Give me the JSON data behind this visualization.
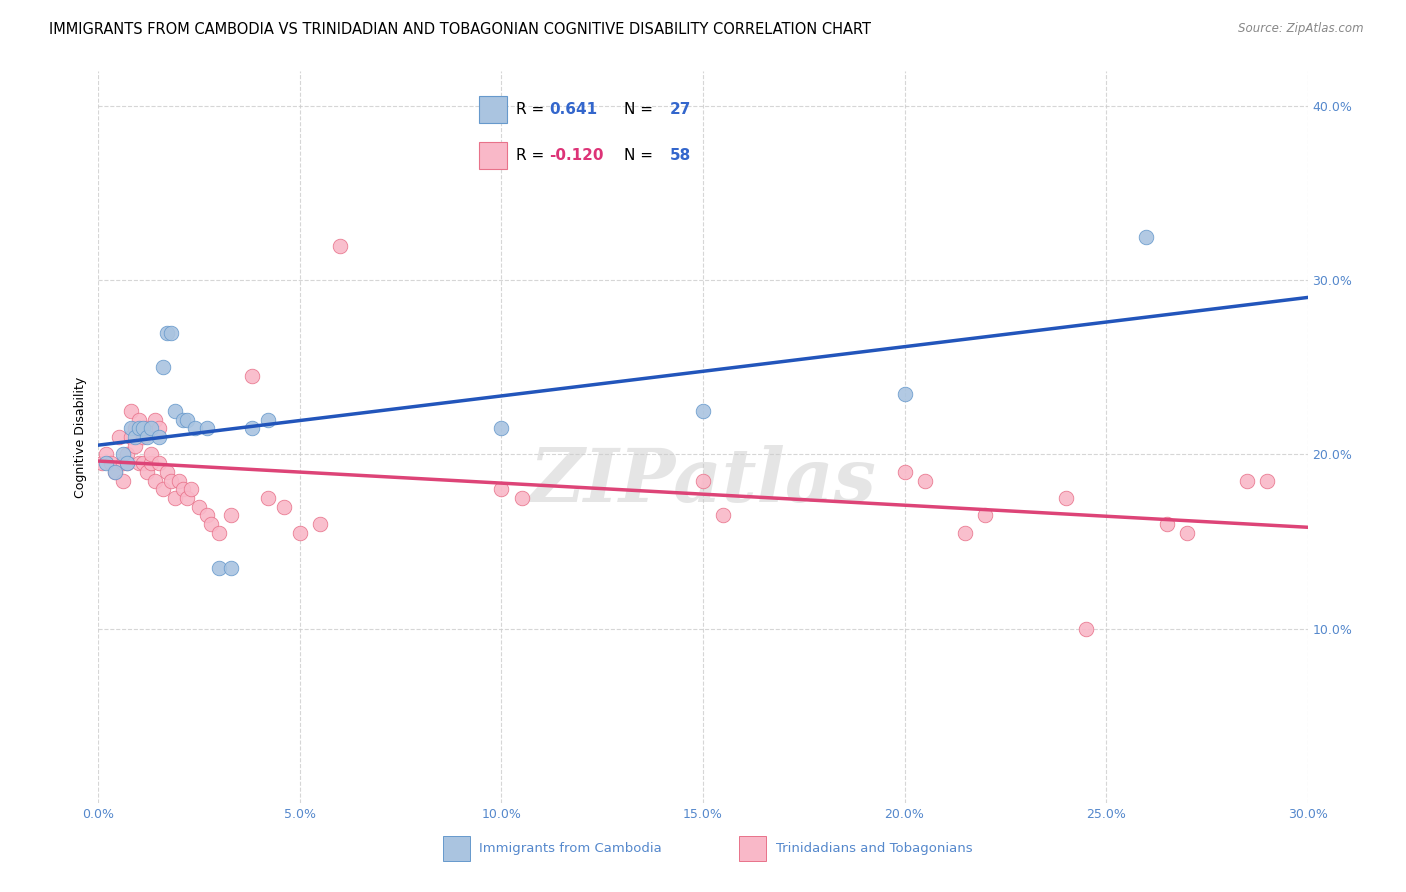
{
  "title": "IMMIGRANTS FROM CAMBODIA VS TRINIDADIAN AND TOBAGONIAN COGNITIVE DISABILITY CORRELATION CHART",
  "source": "Source: ZipAtlas.com",
  "ylabel": "Cognitive Disability",
  "xlim": [
    0.0,
    0.3
  ],
  "ylim": [
    0.0,
    0.42
  ],
  "xticks": [
    0.0,
    0.05,
    0.1,
    0.15,
    0.2,
    0.25,
    0.3
  ],
  "yticks": [
    0.1,
    0.2,
    0.3,
    0.4
  ],
  "ytick_labels": [
    "10.0%",
    "20.0%",
    "30.0%",
    "40.0%"
  ],
  "xtick_labels": [
    "0.0%",
    "5.0%",
    "10.0%",
    "15.0%",
    "20.0%",
    "25.0%",
    "30.0%"
  ],
  "background_color": "#ffffff",
  "grid_color": "#cccccc",
  "blue_marker_face": "#aac4e0",
  "blue_marker_edge": "#6699cc",
  "pink_marker_face": "#f9b8c8",
  "pink_marker_edge": "#e8728a",
  "line_blue": "#2255bb",
  "line_pink": "#dd4477",
  "R_blue": 0.641,
  "N_blue": 27,
  "R_pink": -0.12,
  "N_pink": 58,
  "xlabel_blue": "Immigrants from Cambodia",
  "xlabel_pink": "Trinidadians and Tobagonians",
  "blue_x": [
    0.002,
    0.004,
    0.006,
    0.007,
    0.008,
    0.009,
    0.01,
    0.011,
    0.012,
    0.013,
    0.015,
    0.016,
    0.017,
    0.018,
    0.019,
    0.021,
    0.022,
    0.024,
    0.027,
    0.03,
    0.033,
    0.038,
    0.042,
    0.1,
    0.15,
    0.2,
    0.26
  ],
  "blue_y": [
    0.195,
    0.19,
    0.2,
    0.195,
    0.215,
    0.21,
    0.215,
    0.215,
    0.21,
    0.215,
    0.21,
    0.25,
    0.27,
    0.27,
    0.225,
    0.22,
    0.22,
    0.215,
    0.215,
    0.135,
    0.135,
    0.215,
    0.22,
    0.215,
    0.225,
    0.235,
    0.325
  ],
  "pink_x": [
    0.001,
    0.002,
    0.003,
    0.004,
    0.005,
    0.006,
    0.006,
    0.007,
    0.007,
    0.008,
    0.008,
    0.009,
    0.009,
    0.01,
    0.01,
    0.011,
    0.011,
    0.012,
    0.012,
    0.013,
    0.013,
    0.014,
    0.014,
    0.015,
    0.015,
    0.016,
    0.017,
    0.018,
    0.019,
    0.02,
    0.021,
    0.022,
    0.023,
    0.025,
    0.027,
    0.028,
    0.03,
    0.033,
    0.038,
    0.042,
    0.046,
    0.05,
    0.055,
    0.06,
    0.1,
    0.105,
    0.15,
    0.155,
    0.2,
    0.205,
    0.215,
    0.22,
    0.24,
    0.245,
    0.265,
    0.27,
    0.285,
    0.29
  ],
  "pink_y": [
    0.195,
    0.2,
    0.195,
    0.19,
    0.21,
    0.195,
    0.185,
    0.2,
    0.195,
    0.225,
    0.21,
    0.205,
    0.215,
    0.195,
    0.22,
    0.195,
    0.21,
    0.19,
    0.215,
    0.195,
    0.2,
    0.22,
    0.185,
    0.195,
    0.215,
    0.18,
    0.19,
    0.185,
    0.175,
    0.185,
    0.18,
    0.175,
    0.18,
    0.17,
    0.165,
    0.16,
    0.155,
    0.165,
    0.245,
    0.175,
    0.17,
    0.155,
    0.16,
    0.32,
    0.18,
    0.175,
    0.185,
    0.165,
    0.19,
    0.185,
    0.155,
    0.165,
    0.175,
    0.1,
    0.16,
    0.155,
    0.185,
    0.185
  ],
  "watermark": "ZIPatlas",
  "title_fontsize": 10.5,
  "axis_label_fontsize": 9,
  "tick_fontsize": 9,
  "legend_fontsize": 11,
  "source_fontsize": 8.5
}
